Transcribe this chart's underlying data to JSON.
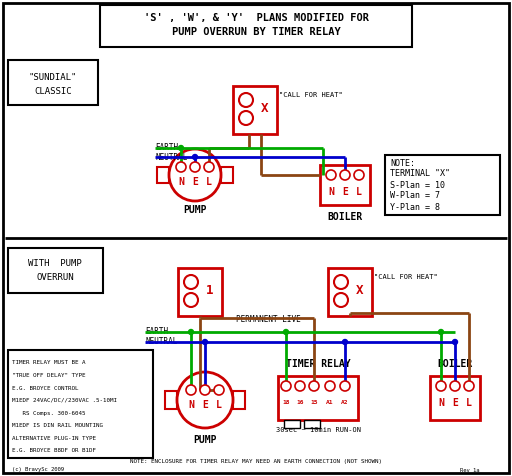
{
  "title_line1": "'S' , 'W', & 'Y'  PLANS MODIFIED FOR",
  "title_line2": "PUMP OVERRUN BY TIMER RELAY",
  "bg_color": "#ffffff",
  "border_color": "#000000",
  "red_color": "#cc0000",
  "green_color": "#00aa00",
  "blue_color": "#0000cc",
  "brown_color": "#8B4513",
  "text_color": "#000000",
  "bottom_note": "NOTE: ENCLOSURE FOR TIMER RELAY MAY NEED AN EARTH CONNECTION (NOT SHOWN)"
}
